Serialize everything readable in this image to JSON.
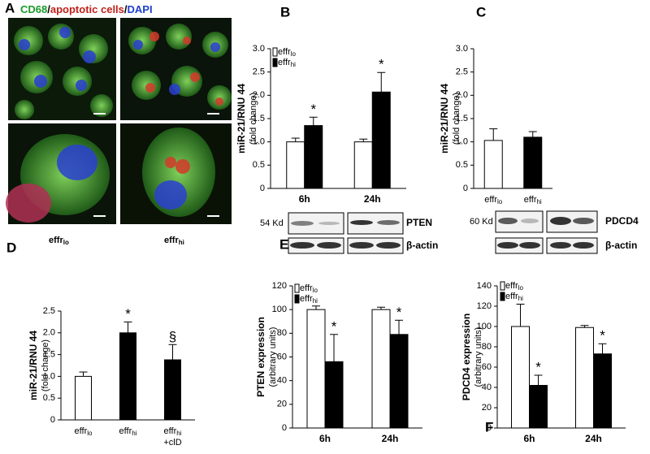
{
  "panel_a": {
    "panel": "A",
    "stain_parts": [
      "CD68",
      "/",
      "apoptotic cells",
      "/",
      "DAPI"
    ],
    "labels": [
      {
        "text": "effr",
        "sub": "lo"
      },
      {
        "text": "effr",
        "sub": "hi"
      }
    ]
  },
  "chart_data": [
    {
      "type": "bar",
      "panel": "B",
      "ylabel": "miR-21/RNU 44",
      "ylabel_note": "(fold change)",
      "bold_categories": true,
      "legend": true,
      "categories": [
        {
          "text": "6h"
        },
        {
          "text": "24h"
        }
      ],
      "series": [
        {
          "name": "effr",
          "name_sub": "lo",
          "color": "#ffffff",
          "values": [
            1.0,
            1.0
          ],
          "errors": [
            0.08,
            0.06
          ]
        },
        {
          "name": "effr",
          "name_sub": "hi",
          "color": "#000000",
          "values": [
            1.35,
            2.07
          ],
          "errors": [
            0.18,
            0.42
          ],
          "marks": [
            "*",
            "*"
          ]
        }
      ],
      "ylim": [
        0,
        3
      ],
      "yticks": [
        0,
        0.5,
        {
          "value": 1,
          "label": "1.0"
        },
        1.5,
        {
          "value": 2,
          "label": "2.0"
        },
        2.5,
        {
          "value": 3,
          "label": "3.0"
        }
      ]
    },
    {
      "type": "bar",
      "panel": "C",
      "ylabel": "miR-21/RNU 44",
      "ylabel_note": "(fold change)",
      "bold_categories": false,
      "legend": false,
      "categories": [
        {
          "text": "effr",
          "sub": "lo"
        },
        {
          "text": "effr",
          "sub": "hi"
        }
      ],
      "series": [
        {
          "colors": [
            "#ffffff",
            "#000000"
          ],
          "values": [
            1.03,
            1.1
          ],
          "errors": [
            0.25,
            0.12
          ]
        }
      ],
      "ylim": [
        0,
        3
      ],
      "yticks": [
        0,
        0.5,
        {
          "value": 1,
          "label": "1.0"
        },
        1.5,
        {
          "value": 2,
          "label": "2.0"
        },
        2.5,
        {
          "value": 3,
          "label": "3.0"
        }
      ]
    },
    {
      "type": "bar",
      "panel": "D",
      "ylabel": "miR-21/RNU 44",
      "ylabel_note": "(fold change)",
      "bold_categories": false,
      "legend": false,
      "categories": [
        {
          "text": "effr",
          "sub": "lo"
        },
        {
          "text": "effr",
          "sub": "hi"
        },
        {
          "text": "effr",
          "sub": "hi",
          "line2": "+clD"
        }
      ],
      "series": [
        {
          "colors": [
            "#ffffff",
            "#000000",
            "#000000"
          ],
          "values": [
            1.0,
            2.0,
            1.38
          ],
          "errors": [
            0.1,
            0.25,
            0.35
          ],
          "marks": [
            null,
            "*",
            "§"
          ]
        }
      ],
      "ylim": [
        0,
        2.5
      ],
      "yticks": [
        0,
        0.5,
        {
          "value": 1,
          "label": "1.0"
        },
        1.5,
        {
          "value": 2,
          "label": "2.0"
        },
        2.5
      ]
    },
    {
      "type": "bar",
      "panel": "E",
      "ylabel": "PTEN expression",
      "ylabel_note": "(arbitrary units)",
      "bold_categories": true,
      "legend": true,
      "blot": {
        "size": "54 Kd",
        "protein": "PTEN",
        "control": "β-actin"
      },
      "categories": [
        {
          "text": "6h"
        },
        {
          "text": "24h"
        }
      ],
      "series": [
        {
          "name": "effr",
          "name_sub": "lo",
          "color": "#ffffff",
          "values": [
            100,
            100
          ],
          "errors": [
            3,
            2
          ]
        },
        {
          "name": "effr",
          "name_sub": "hi",
          "color": "#000000",
          "values": [
            56,
            79
          ],
          "errors": [
            23,
            12
          ],
          "marks": [
            "*",
            "*"
          ]
        }
      ],
      "ylim": [
        0,
        120
      ],
      "yticks": [
        0,
        20,
        40,
        60,
        80,
        100,
        120
      ]
    },
    {
      "type": "bar",
      "panel": "F",
      "ylabel": "PDCD4 expression",
      "ylabel_note": "(arbitrary units)",
      "bold_categories": true,
      "legend": true,
      "blot": {
        "size": "60 Kd",
        "protein": "PDCD4",
        "control": "β-actin"
      },
      "categories": [
        {
          "text": "6h"
        },
        {
          "text": "24h"
        }
      ],
      "series": [
        {
          "name": "effr",
          "name_sub": "lo",
          "color": "#ffffff",
          "values": [
            100,
            99
          ],
          "errors": [
            22,
            2
          ]
        },
        {
          "name": "effr",
          "name_sub": "hi",
          "color": "#000000",
          "values": [
            42,
            73
          ],
          "errors": [
            10,
            10
          ],
          "marks": [
            "*",
            "*"
          ]
        }
      ],
      "ylim": [
        0,
        140
      ],
      "yticks": [
        0,
        20,
        40,
        60,
        80,
        100,
        120,
        140
      ]
    }
  ]
}
